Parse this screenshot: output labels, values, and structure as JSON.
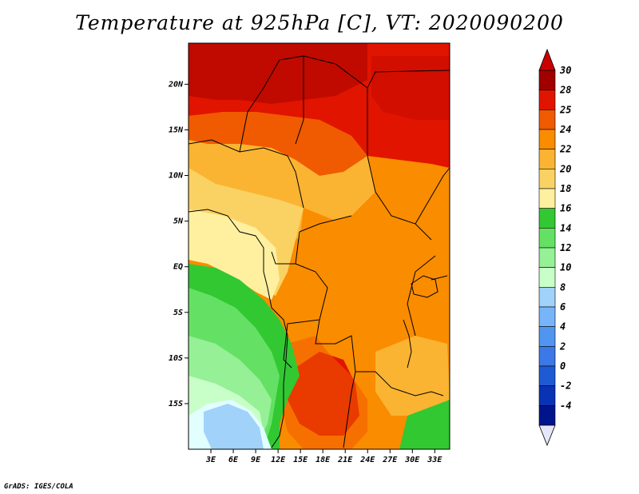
{
  "title": "Temperature at 925hPa [C], VT: 2020090200",
  "credit": "GrADS: IGES/COLA",
  "map": {
    "lon_range": [
      0,
      35
    ],
    "lat_range": [
      -20,
      24.5
    ],
    "lon_ticks": [
      "3E",
      "6E",
      "9E",
      "12E",
      "15E",
      "18E",
      "21E",
      "24E",
      "27E",
      "30E",
      "33E"
    ],
    "lon_tick_values": [
      3,
      6,
      9,
      12,
      15,
      18,
      21,
      24,
      27,
      30,
      33
    ],
    "lat_ticks": [
      "20N",
      "15N",
      "10N",
      "5N",
      "EQ",
      "5S",
      "10S",
      "15S"
    ],
    "lat_tick_values": [
      20,
      15,
      10,
      5,
      0,
      -5,
      -10,
      -15
    ]
  },
  "colorbar": {
    "labels": [
      "30",
      "28",
      "25",
      "24",
      "22",
      "20",
      "18",
      "16",
      "14",
      "12",
      "10",
      "8",
      "6",
      "4",
      "2",
      "0",
      "-2",
      "-4"
    ],
    "colors": [
      "#a00000",
      "#e11400",
      "#f05a00",
      "#fa8c00",
      "#fab432",
      "#fad264",
      "#fff0a0",
      "#32c832",
      "#64e164",
      "#96f096",
      "#c8ffc8",
      "#a0d2fa",
      "#78b4fa",
      "#5096f0",
      "#3c78e6",
      "#1e5ad2",
      "#0a32b4",
      "#00148c"
    ],
    "top_arrow_color": "#c80000",
    "bottom_arrow_color": "#e6e6fa"
  }
}
